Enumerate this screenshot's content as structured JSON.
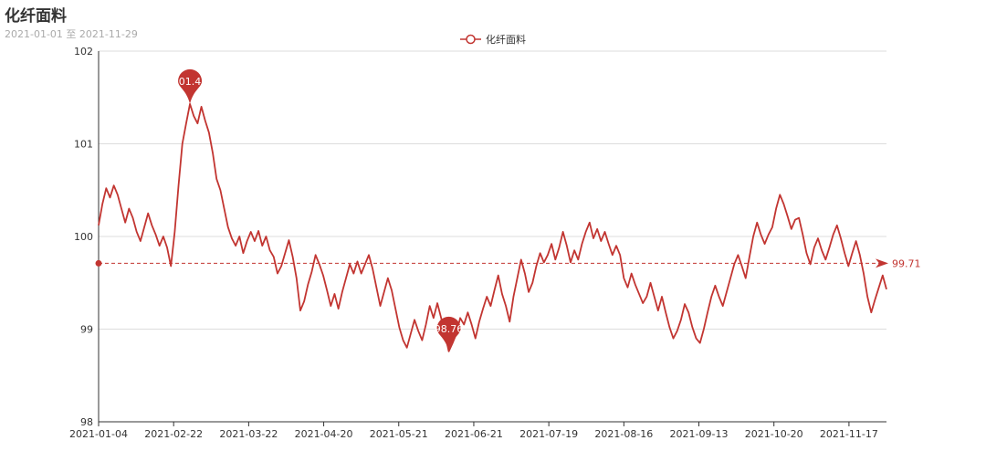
{
  "chart_data": {
    "type": "line",
    "title": "化纤面料",
    "subtitle": "2021-01-01 至 2021-11-29",
    "ylim": [
      98,
      102
    ],
    "yticks": [
      98,
      99,
      100,
      101,
      102
    ],
    "x_tick_labels": [
      "2021-01-04",
      "2021-02-22",
      "2021-03-22",
      "2021-04-20",
      "2021-05-21",
      "2021-06-21",
      "2021-07-19",
      "2021-08-16",
      "2021-09-13",
      "2021-10-20",
      "2021-11-17"
    ],
    "grid": true,
    "legend_position": "top-center",
    "series": [
      {
        "name": "化纤面料",
        "color": "#c23531",
        "values": [
          100.12,
          100.35,
          100.52,
          100.42,
          100.55,
          100.45,
          100.3,
          100.15,
          100.3,
          100.2,
          100.05,
          99.95,
          100.1,
          100.25,
          100.12,
          100.02,
          99.9,
          100.0,
          99.88,
          99.68,
          100.05,
          100.55,
          101.0,
          101.22,
          101.43,
          101.3,
          101.22,
          101.4,
          101.25,
          101.12,
          100.9,
          100.62,
          100.5,
          100.3,
          100.1,
          99.98,
          99.9,
          100.0,
          99.82,
          99.95,
          100.05,
          99.95,
          100.06,
          99.9,
          100.0,
          99.85,
          99.78,
          99.6,
          99.68,
          99.82,
          99.96,
          99.78,
          99.55,
          99.2,
          99.3,
          99.48,
          99.62,
          99.8,
          99.7,
          99.58,
          99.42,
          99.25,
          99.38,
          99.22,
          99.4,
          99.55,
          99.7,
          99.6,
          99.73,
          99.6,
          99.7,
          99.8,
          99.65,
          99.45,
          99.25,
          99.4,
          99.55,
          99.42,
          99.22,
          99.02,
          98.88,
          98.8,
          98.95,
          99.1,
          98.98,
          98.88,
          99.05,
          99.25,
          99.12,
          99.28,
          99.12,
          98.95,
          98.76,
          98.85,
          98.95,
          99.12,
          99.05,
          99.18,
          99.05,
          98.9,
          99.08,
          99.22,
          99.35,
          99.25,
          99.42,
          99.58,
          99.38,
          99.25,
          99.08,
          99.35,
          99.55,
          99.75,
          99.6,
          99.4,
          99.5,
          99.68,
          99.82,
          99.72,
          99.8,
          99.92,
          99.75,
          99.88,
          100.05,
          99.9,
          99.72,
          99.85,
          99.75,
          99.92,
          100.05,
          100.15,
          99.98,
          100.08,
          99.95,
          100.05,
          99.92,
          99.8,
          99.9,
          99.8,
          99.55,
          99.45,
          99.6,
          99.48,
          99.38,
          99.28,
          99.35,
          99.5,
          99.35,
          99.2,
          99.35,
          99.18,
          99.02,
          98.9,
          98.98,
          99.1,
          99.27,
          99.18,
          99.02,
          98.9,
          98.85,
          99.0,
          99.18,
          99.35,
          99.47,
          99.35,
          99.25,
          99.4,
          99.55,
          99.7,
          99.8,
          99.68,
          99.55,
          99.78,
          100.0,
          100.15,
          100.02,
          99.92,
          100.02,
          100.1,
          100.3,
          100.45,
          100.35,
          100.22,
          100.08,
          100.18,
          100.2,
          100.02,
          99.82,
          99.7,
          99.88,
          99.98,
          99.85,
          99.75,
          99.88,
          100.02,
          100.12,
          99.98,
          99.82,
          99.68,
          99.82,
          99.95,
          99.8,
          99.6,
          99.35,
          99.18,
          99.32,
          99.45,
          99.58,
          99.43
        ]
      }
    ],
    "markers": [
      {
        "type": "max",
        "label": "101.43"
      },
      {
        "type": "min",
        "label": "98.76"
      }
    ],
    "average_line": {
      "value": 99.71,
      "label": "99.71"
    }
  }
}
